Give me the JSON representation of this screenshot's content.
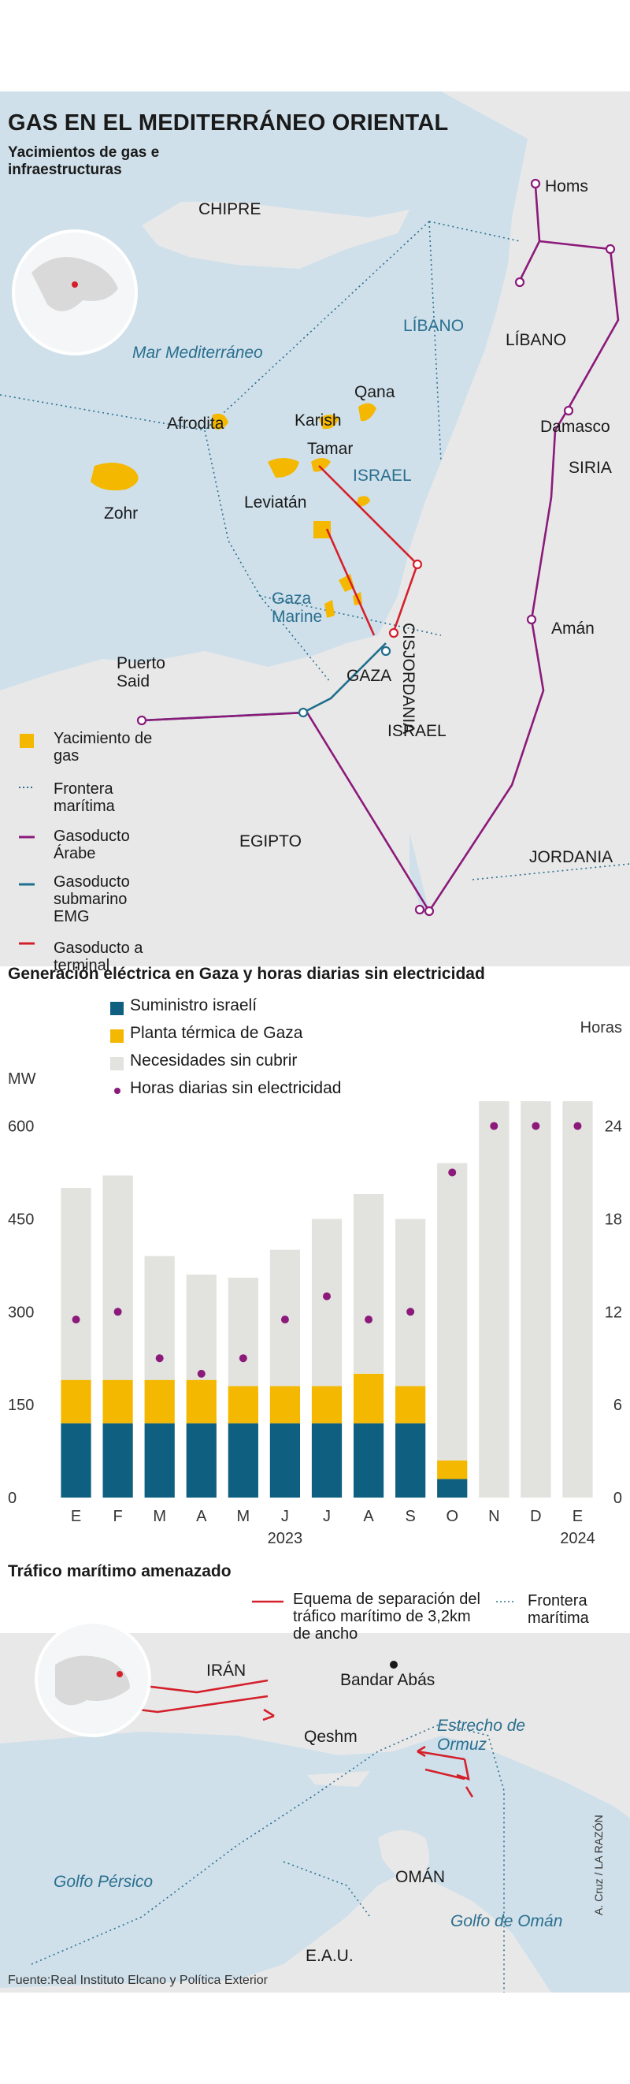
{
  "map": {
    "title": "GAS EN EL MEDITERRÁNEO ORIENTAL",
    "subtitle": "Yacimientos de gas e infraestructuras",
    "places": {
      "chipre": "CHIPRE",
      "libano_sea": "LÍBANO",
      "mar": "Mar Mediterráneo",
      "homs": "Homs",
      "libano": "LÍBANO",
      "damasco": "Damasco",
      "siria": "SIRIA",
      "afrodita": "Afrodita",
      "karish": "Karish",
      "qana": "Qana",
      "tamar": "Tamar",
      "israel_sea": "ISRAEL",
      "zohr": "Zohr",
      "leviatan": "Leviatán",
      "cisjordania": "CISJORDANIA",
      "gaza_marine": "Gaza Marine",
      "aman": "Amán",
      "puerto_said": "Puerto Said",
      "gaza": "GAZA",
      "israel": "ISRAEL",
      "egipto": "EGIPTO",
      "jordania": "JORDANIA"
    },
    "legend": [
      {
        "label": "Yacimiento de gas",
        "color": "#f5b800"
      },
      {
        "label": "Frontera marítima",
        "color": "#2a6f8f"
      },
      {
        "label": "Gasoducto Árabe",
        "color": "#8b1a7a"
      },
      {
        "label": "Gasoducto submarino EMG",
        "color": "#1f6e8c"
      },
      {
        "label": "Gasoducto a terminal",
        "color": "#d4202b"
      }
    ],
    "colors": {
      "sea": "#cfe0ea",
      "land": "#e8e8e8",
      "gas": "#f5b800",
      "arab": "#8b1a7a",
      "emg": "#1f6e8c",
      "terminal": "#d4202b"
    }
  },
  "chart_title": "Generación eléctrica en Gaza y horas diarias sin electricidad",
  "chart_legend": {
    "s1": "Suministro israelí",
    "s2": "Planta térmica de Gaza",
    "s3": "Necesidades sin cubrir",
    "s4": "Horas diarias sin electricidad"
  },
  "chart_data": {
    "type": "bar",
    "title": "Generación eléctrica en Gaza y horas diarias sin electricidad",
    "ylabel": "MW",
    "y2label": "Horas",
    "ylim": [
      0,
      600
    ],
    "y2lim": [
      0,
      24
    ],
    "yticks": [
      0,
      150,
      300,
      450,
      600
    ],
    "y2ticks": [
      0,
      6,
      12,
      18,
      24
    ],
    "categories": [
      "E",
      "F",
      "M",
      "A",
      "M",
      "J",
      "J",
      "A",
      "S",
      "O",
      "N",
      "D",
      "E"
    ],
    "year_labels": [
      {
        "label": "2023",
        "under": 5
      },
      {
        "label": "2024",
        "under": 12
      }
    ],
    "series": [
      {
        "name": "Suministro israelí",
        "kind": "bar",
        "color": "#0f5f80",
        "values": [
          120,
          120,
          120,
          120,
          120,
          120,
          120,
          120,
          120,
          30,
          0,
          0,
          0
        ]
      },
      {
        "name": "Planta térmica de Gaza",
        "kind": "bar",
        "color": "#f5b800",
        "values": [
          70,
          70,
          70,
          70,
          60,
          60,
          60,
          80,
          60,
          30,
          0,
          0,
          0
        ]
      },
      {
        "name": "Necesidades sin cubrir",
        "kind": "bar",
        "color": "#e2e2de",
        "values": [
          310,
          330,
          200,
          170,
          175,
          220,
          270,
          290,
          270,
          480,
          640,
          640,
          640
        ]
      },
      {
        "name": "Horas diarias sin electricidad",
        "kind": "dot",
        "axis": "right",
        "color": "#8b1a7a",
        "values": [
          11.5,
          12,
          9,
          8,
          9,
          11.5,
          13,
          11.5,
          12,
          21,
          24,
          24,
          24
        ]
      }
    ]
  },
  "hormuz": {
    "title": "Tráfico marítimo amenazado",
    "legend_red": "Equema de separación del tráfico marítimo de 3,2km de ancho",
    "legend_border": "Frontera marítima",
    "places": {
      "iran": "IRÁN",
      "bandar": "Bandar Abás",
      "qeshm": "Qeshm",
      "estrecho": "Estrecho de Ormuz",
      "golfo_persico": "Golfo Pérsico",
      "oman": "OMÁN",
      "golfo_oman": "Golfo de Omán",
      "eau": "E.A.U."
    }
  },
  "source": "Fuente:Real Instituto Elcano y Política Exterior",
  "credit": "A. Cruz / LA RAZÓN"
}
